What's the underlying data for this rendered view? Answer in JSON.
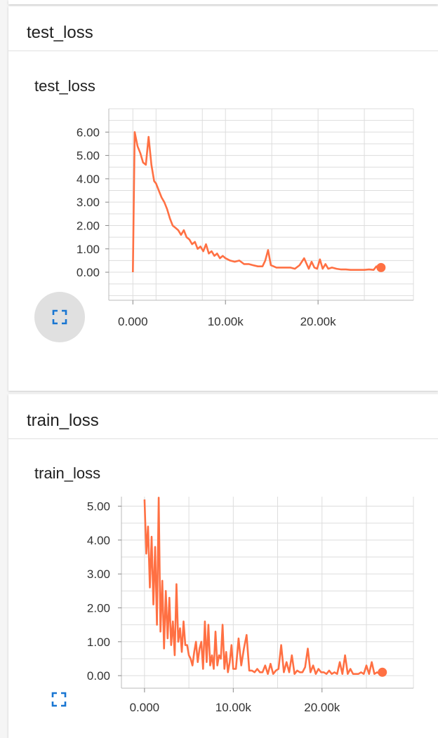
{
  "panels": [
    {
      "section_title": "test_loss",
      "chart_title": "test_loss",
      "expand_icon": "fullscreen-icon"
    },
    {
      "section_title": "train_loss",
      "chart_title": "train_loss",
      "expand_icon": "fullscreen-icon"
    }
  ],
  "colors": {
    "series": "#ff7043",
    "grid": "#dddddd",
    "accent": "#1976d2"
  },
  "chart_data": [
    {
      "type": "line",
      "title": "test_loss",
      "xlabel": "",
      "ylabel": "",
      "xlim": [
        -2600,
        30300
      ],
      "ylim": [
        -1.2,
        7.0
      ],
      "x_ticks": [
        0,
        10000,
        20000
      ],
      "x_tick_labels": [
        "0.000",
        "10.00k",
        "20.00k"
      ],
      "y_ticks": [
        0,
        1,
        2,
        3,
        4,
        5,
        6
      ],
      "y_tick_labels": [
        "0.00",
        "1.00",
        "2.00",
        "3.00",
        "4.00",
        "5.00",
        "6.00"
      ],
      "grid": true,
      "series": [
        {
          "x": [
            0,
            200,
            500,
            800,
            1100,
            1400,
            1700,
            2000,
            2300,
            2500,
            2800,
            3100,
            3400,
            3700,
            4000,
            4300,
            4600,
            4900,
            5200,
            5500,
            5800,
            6100,
            6400,
            6700,
            7000,
            7300,
            7600,
            7900,
            8200,
            8500,
            8800,
            9100,
            9400,
            9700,
            10000,
            10500,
            11000,
            11500,
            12000,
            12500,
            13000,
            13500,
            14000,
            14300,
            14600,
            14900,
            15200,
            15500,
            16000,
            16500,
            17000,
            17500,
            18000,
            18500,
            19000,
            19300,
            19600,
            19900,
            20200,
            20500,
            20800,
            21100,
            21500,
            22000,
            22500,
            23000,
            23500,
            24000,
            24500,
            25000,
            25500,
            26000,
            26300,
            26600,
            26800
          ],
          "y": [
            0.0,
            6.0,
            5.4,
            5.1,
            4.7,
            4.6,
            5.8,
            4.6,
            3.9,
            3.8,
            3.5,
            3.2,
            3.0,
            2.7,
            2.3,
            2.0,
            1.9,
            1.8,
            1.6,
            1.8,
            1.5,
            1.4,
            1.2,
            1.3,
            1.0,
            1.1,
            0.9,
            1.2,
            0.8,
            0.9,
            0.7,
            0.8,
            0.6,
            0.7,
            0.6,
            0.5,
            0.45,
            0.5,
            0.35,
            0.35,
            0.3,
            0.25,
            0.25,
            0.5,
            0.95,
            0.3,
            0.25,
            0.2,
            0.2,
            0.2,
            0.2,
            0.15,
            0.3,
            0.6,
            0.15,
            0.45,
            0.2,
            0.15,
            0.55,
            0.15,
            0.35,
            0.15,
            0.2,
            0.15,
            0.12,
            0.12,
            0.1,
            0.1,
            0.1,
            0.1,
            0.12,
            0.1,
            0.25,
            0.1,
            0.2
          ]
        }
      ]
    },
    {
      "type": "line",
      "title": "train_loss",
      "xlabel": "",
      "ylabel": "",
      "xlim": [
        -2600,
        30300
      ],
      "ylim": [
        -0.37,
        5.28
      ],
      "x_ticks": [
        0,
        10000,
        20000
      ],
      "x_tick_labels": [
        "0.000",
        "10.00k",
        "20.00k"
      ],
      "y_ticks": [
        0,
        1,
        2,
        3,
        4,
        5
      ],
      "y_tick_labels": [
        "0.00",
        "1.00",
        "2.00",
        "3.00",
        "4.00",
        "5.00"
      ],
      "grid": true,
      "series": [
        {
          "x": [
            0,
            200,
            400,
            600,
            800,
            1000,
            1200,
            1400,
            1600,
            1800,
            2000,
            2200,
            2400,
            2600,
            2800,
            3000,
            3200,
            3400,
            3600,
            3800,
            4000,
            4200,
            4400,
            4600,
            4800,
            5000,
            5200,
            5400,
            5600,
            5800,
            6000,
            6200,
            6400,
            6600,
            6800,
            7000,
            7200,
            7400,
            7600,
            7800,
            8000,
            8200,
            8400,
            8600,
            8800,
            9000,
            9200,
            9400,
            9600,
            9800,
            10000,
            10300,
            10600,
            10900,
            11200,
            11500,
            11800,
            12100,
            12400,
            12700,
            13000,
            13300,
            13600,
            13900,
            14200,
            14500,
            14800,
            15100,
            15400,
            15700,
            16000,
            16300,
            16600,
            16900,
            17200,
            17500,
            17800,
            18100,
            18400,
            18700,
            19000,
            19300,
            19600,
            19900,
            20200,
            20500,
            20800,
            21100,
            21400,
            21700,
            22000,
            22300,
            22600,
            22900,
            23200,
            23500,
            23800,
            24100,
            24400,
            24700,
            25000,
            25300,
            25600,
            25900,
            26200,
            26500,
            26700,
            26800
          ],
          "y": [
            5.2,
            3.6,
            4.4,
            2.6,
            4.1,
            2.1,
            3.8,
            1.5,
            5.25,
            1.3,
            2.8,
            0.8,
            2.5,
            1.1,
            2.3,
            0.9,
            1.6,
            0.6,
            2.7,
            1.0,
            1.4,
            0.7,
            1.6,
            0.9,
            0.9,
            0.6,
            0.5,
            0.3,
            0.7,
            1.0,
            0.4,
            0.8,
            1.0,
            0.2,
            1.6,
            0.4,
            1.5,
            0.3,
            0.6,
            0.2,
            1.3,
            0.3,
            0.6,
            0.5,
            1.5,
            0.2,
            0.7,
            0.1,
            0.4,
            0.9,
            0.2,
            0.2,
            1.1,
            0.3,
            0.8,
            1.2,
            0.15,
            0.15,
            0.1,
            0.2,
            0.1,
            0.1,
            0.3,
            0.05,
            0.35,
            0.05,
            0.15,
            0.2,
            0.9,
            0.1,
            0.4,
            0.1,
            0.6,
            0.05,
            0.15,
            0.1,
            0.1,
            0.25,
            0.8,
            0.1,
            0.3,
            0.05,
            0.2,
            0.1,
            0.1,
            0.05,
            0.15,
            0.05,
            0.1,
            0.05,
            0.4,
            0.05,
            0.6,
            0.05,
            0.2,
            0.05,
            0.05,
            0.05,
            0.1,
            0.05,
            0.3,
            0.05,
            0.4,
            0.05,
            0.1,
            0.05,
            0.05,
            0.1
          ]
        }
      ]
    }
  ]
}
